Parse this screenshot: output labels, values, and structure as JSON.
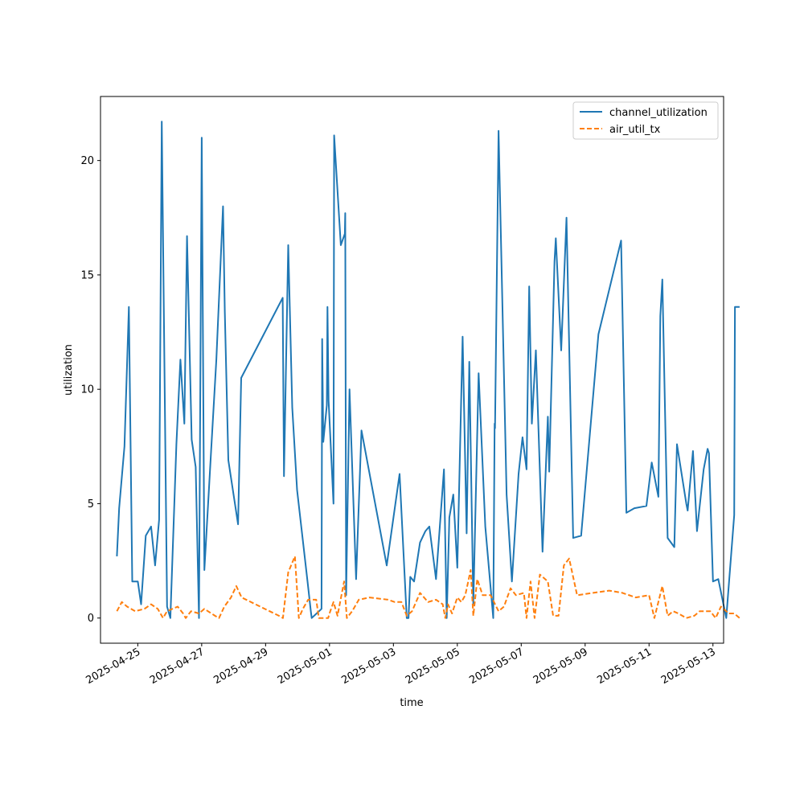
{
  "chart_data": {
    "type": "line",
    "title": "",
    "xlabel": "time",
    "ylabel": "utilization",
    "xlim": [
      "2025-04-23T20:00",
      "2025-05-13T08:00"
    ],
    "ylim": [
      -1.1,
      22.8
    ],
    "yticks": [
      0,
      5,
      10,
      15,
      20
    ],
    "xticks": [
      "2025-04-25",
      "2025-04-27",
      "2025-04-29",
      "2025-05-01",
      "2025-05-03",
      "2025-05-05",
      "2025-05-07",
      "2025-05-09",
      "2025-05-11",
      "2025-05-13"
    ],
    "grid": false,
    "legend": {
      "placement": "top-right"
    },
    "series": [
      {
        "name": "channel_utilization",
        "color": "#1f77b4",
        "style": "solid",
        "points": [
          [
            "2025-04-24T08:20",
            2.7
          ],
          [
            "2025-04-24T10:00",
            4.8
          ],
          [
            "2025-04-24T14:00",
            7.5
          ],
          [
            "2025-04-24T17:20",
            13.6
          ],
          [
            "2025-04-24T19:50",
            1.6
          ],
          [
            "2025-04-25T00:00",
            1.6
          ],
          [
            "2025-04-25T02:30",
            0.6
          ],
          [
            "2025-04-25T06:00",
            3.6
          ],
          [
            "2025-04-25T10:00",
            4.0
          ],
          [
            "2025-04-25T13:00",
            2.3
          ],
          [
            "2025-04-25T16:00",
            4.3
          ],
          [
            "2025-04-25T18:00",
            21.7
          ],
          [
            "2025-04-25T22:00",
            0.5
          ],
          [
            "2025-04-26T00:30",
            0.0
          ],
          [
            "2025-04-26T05:00",
            7.6
          ],
          [
            "2025-04-26T08:00",
            11.3
          ],
          [
            "2025-04-26T11:00",
            8.5
          ],
          [
            "2025-04-26T13:00",
            16.7
          ],
          [
            "2025-04-26T16:30",
            7.8
          ],
          [
            "2025-04-26T19:30",
            6.6
          ],
          [
            "2025-04-26T22:00",
            0.0
          ],
          [
            "2025-04-27T00:00",
            21.0
          ],
          [
            "2025-04-27T02:00",
            2.1
          ],
          [
            "2025-04-27T07:00",
            7.2
          ],
          [
            "2025-04-27T11:00",
            11.3
          ],
          [
            "2025-04-27T16:00",
            18.0
          ],
          [
            "2025-04-27T17:20",
            13.4
          ],
          [
            "2025-04-27T20:00",
            6.9
          ],
          [
            "2025-04-28T03:20",
            4.1
          ],
          [
            "2025-04-28T05:40",
            10.5
          ],
          [
            "2025-04-29T12:50",
            14.0
          ],
          [
            "2025-04-29T13:50",
            6.2
          ],
          [
            "2025-04-29T17:00",
            16.3
          ],
          [
            "2025-04-29T20:00",
            9.2
          ],
          [
            "2025-04-29T23:40",
            5.6
          ],
          [
            "2025-04-30T07:30",
            1.6
          ],
          [
            "2025-04-30T10:00",
            0.3
          ],
          [
            "2025-04-30T10:40",
            0.0
          ],
          [
            "2025-04-30T18:00",
            0.4
          ],
          [
            "2025-04-30T18:30",
            12.2
          ],
          [
            "2025-04-30T19:20",
            7.7
          ],
          [
            "2025-04-30T22:00",
            9.3
          ],
          [
            "2025-04-30T22:30",
            13.6
          ],
          [
            "2025-04-30T23:20",
            9.5
          ],
          [
            "2025-05-01T03:00",
            5.0
          ],
          [
            "2025-05-01T03:30",
            21.1
          ],
          [
            "2025-05-01T08:30",
            16.3
          ],
          [
            "2025-05-01T11:30",
            16.8
          ],
          [
            "2025-05-01T11:50",
            17.7
          ],
          [
            "2025-05-01T12:30",
            1.0
          ],
          [
            "2025-05-01T15:00",
            10.0
          ],
          [
            "2025-05-01T20:00",
            1.7
          ],
          [
            "2025-05-02T00:00",
            8.2
          ],
          [
            "2025-05-02T19:00",
            2.3
          ],
          [
            "2025-05-03T04:40",
            6.3
          ],
          [
            "2025-05-03T10:00",
            0.0
          ],
          [
            "2025-05-03T11:20",
            0.0
          ],
          [
            "2025-05-03T12:40",
            1.8
          ],
          [
            "2025-05-03T15:30",
            1.6
          ],
          [
            "2025-05-03T20:00",
            3.3
          ],
          [
            "2025-05-04T00:00",
            3.8
          ],
          [
            "2025-05-04T03:00",
            4.0
          ],
          [
            "2025-05-04T08:00",
            1.7
          ],
          [
            "2025-05-04T14:00",
            6.5
          ],
          [
            "2025-05-04T16:00",
            0.0
          ],
          [
            "2025-05-04T18:00",
            4.4
          ],
          [
            "2025-05-04T21:00",
            5.4
          ],
          [
            "2025-05-05T00:00",
            2.2
          ],
          [
            "2025-05-05T04:00",
            12.3
          ],
          [
            "2025-05-05T07:00",
            3.7
          ],
          [
            "2025-05-05T09:00",
            11.2
          ],
          [
            "2025-05-05T12:00",
            0.6
          ],
          [
            "2025-05-05T16:00",
            10.7
          ],
          [
            "2025-05-05T21:00",
            4.0
          ],
          [
            "2025-05-06T03:00",
            0.0
          ],
          [
            "2025-05-06T04:00",
            8.5
          ],
          [
            "2025-05-06T04:20",
            8.3
          ],
          [
            "2025-05-06T07:00",
            21.3
          ],
          [
            "2025-05-06T13:00",
            5.4
          ],
          [
            "2025-05-06T17:00",
            1.6
          ],
          [
            "2025-05-06T22:00",
            6.3
          ],
          [
            "2025-05-07T01:00",
            7.9
          ],
          [
            "2025-05-07T04:00",
            6.5
          ],
          [
            "2025-05-07T06:00",
            14.5
          ],
          [
            "2025-05-07T08:00",
            8.5
          ],
          [
            "2025-05-07T11:00",
            11.7
          ],
          [
            "2025-05-07T16:00",
            2.9
          ],
          [
            "2025-05-07T20:00",
            8.8
          ],
          [
            "2025-05-07T21:00",
            6.4
          ],
          [
            "2025-05-08T01:00",
            15.6
          ],
          [
            "2025-05-08T02:00",
            16.6
          ],
          [
            "2025-05-08T06:00",
            11.7
          ],
          [
            "2025-05-08T10:00",
            17.5
          ],
          [
            "2025-05-08T15:00",
            3.5
          ],
          [
            "2025-05-08T21:00",
            3.6
          ],
          [
            "2025-05-09T10:00",
            12.4
          ],
          [
            "2025-05-10T03:00",
            16.5
          ],
          [
            "2025-05-10T07:00",
            4.6
          ],
          [
            "2025-05-10T13:00",
            4.8
          ],
          [
            "2025-05-10T22:00",
            4.9
          ],
          [
            "2025-05-11T02:00",
            6.8
          ],
          [
            "2025-05-11T07:00",
            5.3
          ],
          [
            "2025-05-11T08:30",
            13.2
          ],
          [
            "2025-05-11T10:00",
            14.8
          ],
          [
            "2025-05-11T14:00",
            3.5
          ],
          [
            "2025-05-11T19:00",
            3.1
          ],
          [
            "2025-05-11T21:00",
            7.6
          ],
          [
            "2025-05-12T04:00",
            5.0
          ],
          [
            "2025-05-12T05:00",
            4.7
          ],
          [
            "2025-05-12T09:00",
            7.3
          ],
          [
            "2025-05-12T12:00",
            3.8
          ],
          [
            "2025-05-12T17:00",
            6.5
          ],
          [
            "2025-05-12T20:00",
            7.4
          ],
          [
            "2025-05-12T21:00",
            7.2
          ],
          [
            "2025-05-13T00:00",
            1.6
          ],
          [
            "2025-05-13T04:00",
            1.7
          ],
          [
            "2025-05-13T10:00",
            0.0
          ],
          [
            "2025-05-13T16:00",
            4.5
          ],
          [
            "2025-05-13T16:30",
            13.6
          ],
          [
            "2025-05-13T20:00",
            13.6
          ]
        ]
      },
      {
        "name": "air_util_tx",
        "color": "#ff7f0e",
        "style": "dashed",
        "points": [
          [
            "2025-04-24T08:20",
            0.3
          ],
          [
            "2025-04-24T12:00",
            0.7
          ],
          [
            "2025-04-24T16:00",
            0.5
          ],
          [
            "2025-04-24T22:00",
            0.3
          ],
          [
            "2025-04-25T05:00",
            0.4
          ],
          [
            "2025-04-25T10:00",
            0.6
          ],
          [
            "2025-04-25T15:00",
            0.4
          ],
          [
            "2025-04-25T19:00",
            0.0
          ],
          [
            "2025-04-25T22:00",
            0.3
          ],
          [
            "2025-04-26T06:00",
            0.5
          ],
          [
            "2025-04-26T10:00",
            0.2
          ],
          [
            "2025-04-26T12:00",
            0.0
          ],
          [
            "2025-04-26T16:00",
            0.3
          ],
          [
            "2025-04-26T22:00",
            0.2
          ],
          [
            "2025-04-27T02:00",
            0.4
          ],
          [
            "2025-04-27T10:00",
            0.1
          ],
          [
            "2025-04-27T13:00",
            0.0
          ],
          [
            "2025-04-27T17:00",
            0.5
          ],
          [
            "2025-04-27T22:00",
            0.9
          ],
          [
            "2025-04-28T02:00",
            1.4
          ],
          [
            "2025-04-28T06:00",
            0.9
          ],
          [
            "2025-04-29T10:00",
            0.1
          ],
          [
            "2025-04-29T13:00",
            0.0
          ],
          [
            "2025-04-29T17:00",
            2.0
          ],
          [
            "2025-04-29T22:00",
            2.7
          ],
          [
            "2025-04-30T01:00",
            0.0
          ],
          [
            "2025-04-30T04:00",
            0.4
          ],
          [
            "2025-04-30T08:00",
            0.8
          ],
          [
            "2025-04-30T14:00",
            0.8
          ],
          [
            "2025-04-30T16:00",
            0.0
          ],
          [
            "2025-04-30T23:00",
            0.0
          ],
          [
            "2025-05-01T00:00",
            0.2
          ],
          [
            "2025-05-01T03:00",
            0.7
          ],
          [
            "2025-05-01T06:00",
            0.1
          ],
          [
            "2025-05-01T09:00",
            1.0
          ],
          [
            "2025-05-01T11:00",
            1.6
          ],
          [
            "2025-05-01T13:00",
            0.0
          ],
          [
            "2025-05-01T17:00",
            0.3
          ],
          [
            "2025-05-01T22:00",
            0.8
          ],
          [
            "2025-05-02T06:00",
            0.9
          ],
          [
            "2025-05-02T20:00",
            0.8
          ],
          [
            "2025-05-03T01:00",
            0.7
          ],
          [
            "2025-05-03T06:00",
            0.7
          ],
          [
            "2025-05-03T10:00",
            0.1
          ],
          [
            "2025-05-03T14:00",
            0.3
          ],
          [
            "2025-05-03T20:00",
            1.1
          ],
          [
            "2025-05-04T02:00",
            0.7
          ],
          [
            "2025-05-04T08:00",
            0.8
          ],
          [
            "2025-05-04T13:00",
            0.6
          ],
          [
            "2025-05-04T15:00",
            0.0
          ],
          [
            "2025-05-04T17:00",
            0.6
          ],
          [
            "2025-05-04T20:00",
            0.2
          ],
          [
            "2025-05-05T00:00",
            0.9
          ],
          [
            "2025-05-05T03:00",
            0.7
          ],
          [
            "2025-05-05T06:00",
            1.0
          ],
          [
            "2025-05-05T10:00",
            2.1
          ],
          [
            "2025-05-05T12:00",
            0.1
          ],
          [
            "2025-05-05T15:00",
            1.7
          ],
          [
            "2025-05-05T19:00",
            1.0
          ],
          [
            "2025-05-06T01:00",
            1.0
          ],
          [
            "2025-05-06T07:00",
            0.3
          ],
          [
            "2025-05-06T11:00",
            0.5
          ],
          [
            "2025-05-06T16:00",
            1.3
          ],
          [
            "2025-05-06T20:00",
            1.0
          ],
          [
            "2025-05-07T02:00",
            1.1
          ],
          [
            "2025-05-07T04:00",
            0.0
          ],
          [
            "2025-05-07T07:00",
            1.6
          ],
          [
            "2025-05-07T10:00",
            0.0
          ],
          [
            "2025-05-07T14:00",
            1.9
          ],
          [
            "2025-05-07T20:00",
            1.6
          ],
          [
            "2025-05-08T00:00",
            0.1
          ],
          [
            "2025-05-08T04:00",
            0.1
          ],
          [
            "2025-05-08T08:00",
            2.3
          ],
          [
            "2025-05-08T12:00",
            2.6
          ],
          [
            "2025-05-08T18:00",
            1.0
          ],
          [
            "2025-05-09T06:00",
            1.1
          ],
          [
            "2025-05-09T18:00",
            1.2
          ],
          [
            "2025-05-10T04:00",
            1.1
          ],
          [
            "2025-05-10T14:00",
            0.9
          ],
          [
            "2025-05-11T00:00",
            1.0
          ],
          [
            "2025-05-11T04:00",
            0.0
          ],
          [
            "2025-05-11T10:00",
            1.4
          ],
          [
            "2025-05-11T14:00",
            0.1
          ],
          [
            "2025-05-11T18:00",
            0.3
          ],
          [
            "2025-05-11T22:00",
            0.2
          ],
          [
            "2025-05-12T04:00",
            0.0
          ],
          [
            "2025-05-12T10:00",
            0.1
          ],
          [
            "2025-05-12T14:00",
            0.3
          ],
          [
            "2025-05-12T19:00",
            0.3
          ],
          [
            "2025-05-12T22:00",
            0.3
          ],
          [
            "2025-05-13T02:00",
            0.0
          ],
          [
            "2025-05-13T06:00",
            0.5
          ],
          [
            "2025-05-13T12:00",
            0.2
          ],
          [
            "2025-05-13T16:00",
            0.2
          ],
          [
            "2025-05-13T20:00",
            0.0
          ]
        ]
      }
    ]
  }
}
